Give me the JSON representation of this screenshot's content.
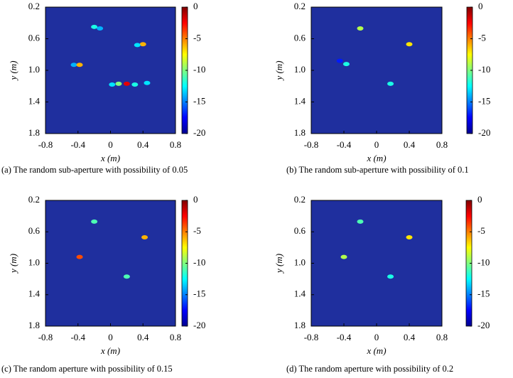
{
  "chart_data": [
    {
      "type": "heatmap",
      "caption": "(a) The random sub-aperture with possibility of 0.05",
      "xlabel": "x (m)",
      "ylabel": "y (m)",
      "xlim": [
        -0.8,
        0.8
      ],
      "ylim": [
        0.2,
        1.8
      ],
      "y_inverted": true,
      "xticks": [
        -0.8,
        -0.4,
        0,
        0.4,
        0.8
      ],
      "yticks": [
        0.2,
        0.6,
        {
          "value": 1,
          "label": "1.0"
        },
        1.4,
        1.8
      ],
      "clim": [
        -20,
        0
      ],
      "cticks": [
        0,
        -5,
        -10,
        -15,
        -20
      ],
      "background": "#1f2f9e",
      "spots": {
        "x": [
          -0.2,
          -0.13,
          0.4,
          0.33,
          -0.45,
          -0.38,
          0.2,
          0.1,
          0.02,
          0.3,
          0.45
        ],
        "y": [
          0.45,
          0.47,
          0.67,
          0.68,
          0.93,
          0.93,
          1.17,
          1.17,
          1.18,
          1.18,
          1.16
        ],
        "values": [
          -12,
          -14,
          -6,
          -13,
          -14,
          -6,
          -2,
          -10,
          -13,
          -12,
          -13
        ]
      }
    },
    {
      "type": "heatmap",
      "caption": "(b) The random sub-aperture with possibility of 0.1",
      "xlabel": "x (m)",
      "ylabel": "y (m)",
      "xlim": [
        -0.8,
        0.8
      ],
      "ylim": [
        0.2,
        1.8
      ],
      "y_inverted": true,
      "xticks": [
        -0.8,
        -0.4,
        0,
        0.4,
        0.8
      ],
      "yticks": [
        0.2,
        0.6,
        {
          "value": 1,
          "label": "1.0"
        },
        1.4,
        1.8
      ],
      "clim": [
        -20,
        0
      ],
      "cticks": [
        0,
        -5,
        -10,
        -15,
        -20
      ],
      "background": "#1f2f9e",
      "spots": {
        "x": [
          -0.2,
          0.4,
          -0.37,
          -0.45,
          0.17
        ],
        "y": [
          0.47,
          0.67,
          0.92,
          0.88,
          1.17
        ],
        "values": [
          -9,
          -7,
          -12,
          -17,
          -12
        ]
      }
    },
    {
      "type": "heatmap",
      "caption": "(c) The random aperture with possibility of 0.15",
      "xlabel": "x (m)",
      "ylabel": "y (m)",
      "xlim": [
        -0.8,
        0.8
      ],
      "ylim": [
        0.2,
        1.8
      ],
      "y_inverted": true,
      "xticks": [
        -0.8,
        -0.4,
        0,
        0.4,
        0.8
      ],
      "yticks": [
        0.2,
        0.6,
        {
          "value": 1,
          "label": "1.0"
        },
        1.4,
        1.8
      ],
      "clim": [
        -20,
        0
      ],
      "cticks": [
        0,
        -5,
        -10,
        -15,
        -20
      ],
      "background": "#1f2f9e",
      "spots": {
        "x": [
          -0.2,
          0.42,
          -0.38,
          0.2
        ],
        "y": [
          0.47,
          0.67,
          0.92,
          1.17
        ],
        "values": [
          -11,
          -6,
          -4,
          -11
        ]
      }
    },
    {
      "type": "heatmap",
      "caption": "(d) The random aperture with possibility of 0.2",
      "xlabel": "x (m)",
      "ylabel": "y (m)",
      "xlim": [
        -0.8,
        0.8
      ],
      "ylim": [
        0.2,
        1.8
      ],
      "y_inverted": true,
      "xticks": [
        -0.8,
        -0.4,
        0,
        0.4,
        0.8
      ],
      "yticks": [
        0.2,
        0.6,
        {
          "value": 1,
          "label": "1.0"
        },
        1.4,
        1.8
      ],
      "clim": [
        -20,
        0
      ],
      "cticks": [
        0,
        -5,
        -10,
        -15,
        -20
      ],
      "background": "#1f2f9e",
      "spots": {
        "x": [
          -0.2,
          0.4,
          -0.4,
          0.17
        ],
        "y": [
          0.47,
          0.67,
          0.92,
          1.17
        ],
        "values": [
          -11,
          -7,
          -9,
          -12
        ]
      }
    }
  ]
}
